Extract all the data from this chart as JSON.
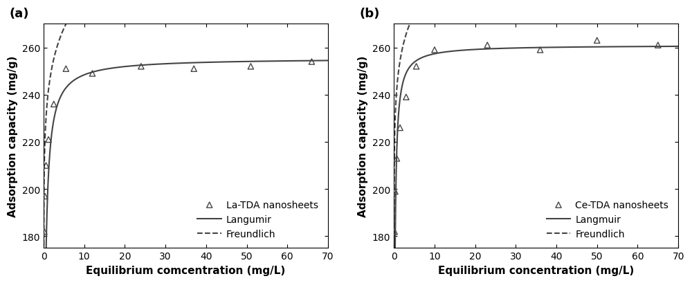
{
  "panel_a": {
    "label": "(a)",
    "scatter_x": [
      0.15,
      0.3,
      0.6,
      1.2,
      2.5,
      5.5,
      12.0,
      24.0,
      37.0,
      51.0,
      66.0
    ],
    "scatter_y": [
      182,
      197,
      210,
      221,
      236,
      251,
      249,
      252,
      251,
      252,
      254
    ],
    "langmuir_params": {
      "qmax": 255.5,
      "KL": 3.5
    },
    "freundlich_params": {
      "KF": 239.0,
      "n": 14.0
    },
    "xlabel": "Equilibrium comcentration (mg/L)",
    "ylabel": "Adsorption capacity (mg/g)",
    "legend_scatter": "La-TDA nanosheets",
    "legend_langmuir": "Langumir",
    "legend_freundlich": "Freundlich",
    "xlim": [
      0,
      70
    ],
    "ylim": [
      175,
      270
    ],
    "yticks": [
      180,
      200,
      220,
      240,
      260
    ],
    "xticks": [
      0,
      10,
      20,
      30,
      40,
      50,
      60,
      70
    ]
  },
  "panel_b": {
    "label": "(b)",
    "scatter_x": [
      0.15,
      0.3,
      0.7,
      1.5,
      3.0,
      5.5,
      10.0,
      23.0,
      36.0,
      50.0,
      65.0
    ],
    "scatter_y": [
      182,
      199,
      213,
      226,
      239,
      252,
      259,
      261,
      259,
      263,
      261
    ],
    "langmuir_params": {
      "qmax": 261.0,
      "KL": 7.0
    },
    "freundlich_params": {
      "KF": 248.0,
      "n": 16.0
    },
    "xlabel": "Equilibrium concentration (mg/L)",
    "ylabel": "Adsorption capacity (mg/g)",
    "legend_scatter": "Ce-TDA nanosheets",
    "legend_langmuir": "Langmuir",
    "legend_freundlich": "Freundlich",
    "xlim": [
      0,
      70
    ],
    "ylim": [
      175,
      270
    ],
    "yticks": [
      180,
      200,
      220,
      240,
      260
    ],
    "xticks": [
      0,
      10,
      20,
      30,
      40,
      50,
      60,
      70
    ]
  },
  "line_color": "#444444",
  "scatter_color": "#444444",
  "bg_color": "#ffffff",
  "fontsize_label": 11,
  "fontsize_tick": 10,
  "fontsize_legend": 10,
  "fontsize_panel_label": 13
}
